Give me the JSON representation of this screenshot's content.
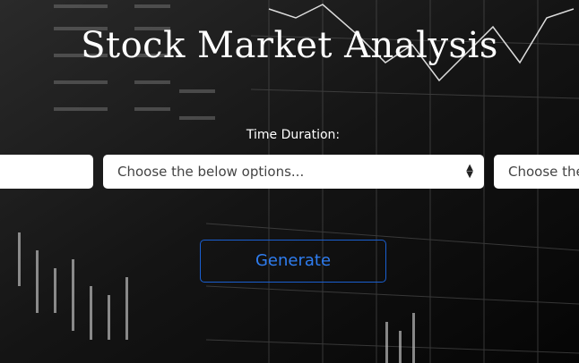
{
  "header": {
    "title": "Stock Market Analysis"
  },
  "form": {
    "duration_label": "Time Duration:",
    "select_placeholder": "Choose the below options...",
    "second_select_placeholder": "Choose the",
    "generate_button": "Generate"
  }
}
